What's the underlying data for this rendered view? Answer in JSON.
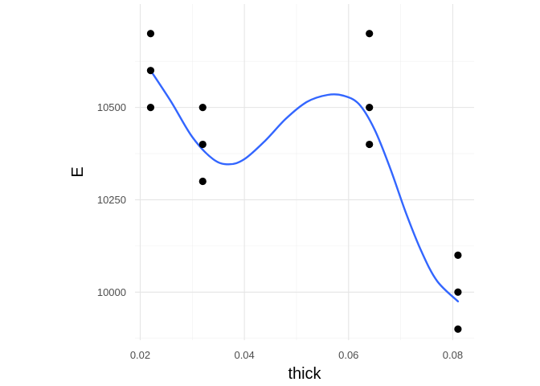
{
  "chart_data": {
    "type": "scatter",
    "xlabel": "thick",
    "ylabel": "E",
    "xlim": [
      0.019,
      0.0841
    ],
    "ylim": [
      9870,
      10780
    ],
    "x_ticks": [
      0.02,
      0.04,
      0.06,
      0.08
    ],
    "x_tick_labels": [
      "0.02",
      "0.04",
      "0.06",
      "0.08"
    ],
    "x_minor_ticks": [
      0.03,
      0.05,
      0.07
    ],
    "y_ticks": [
      10000,
      10250,
      10500
    ],
    "y_tick_labels": [
      "10000",
      "10250",
      "10500"
    ],
    "y_minor_ticks": [
      9875,
      10125,
      10375,
      10625
    ],
    "grid": true,
    "points": [
      {
        "x": 0.022,
        "y": 10700
      },
      {
        "x": 0.022,
        "y": 10600
      },
      {
        "x": 0.022,
        "y": 10500
      },
      {
        "x": 0.032,
        "y": 10500
      },
      {
        "x": 0.032,
        "y": 10400
      },
      {
        "x": 0.032,
        "y": 10300
      },
      {
        "x": 0.064,
        "y": 10700
      },
      {
        "x": 0.064,
        "y": 10500
      },
      {
        "x": 0.064,
        "y": 10400
      },
      {
        "x": 0.081,
        "y": 10100
      },
      {
        "x": 0.081,
        "y": 10000
      },
      {
        "x": 0.081,
        "y": 9900
      }
    ],
    "smooth_line": {
      "color": "#3366ff",
      "x": [
        0.022,
        0.026,
        0.03,
        0.034,
        0.037,
        0.04,
        0.044,
        0.048,
        0.052,
        0.056,
        0.059,
        0.062,
        0.065,
        0.068,
        0.071,
        0.074,
        0.077,
        0.081
      ],
      "y": [
        10600,
        10514,
        10420,
        10360,
        10346,
        10360,
        10410,
        10470,
        10515,
        10534,
        10532,
        10509,
        10440,
        10335,
        10215,
        10110,
        10030,
        9975
      ]
    },
    "colors": {
      "points": "#000000",
      "grid": "#e5e5e5",
      "background": "#ffffff"
    }
  }
}
